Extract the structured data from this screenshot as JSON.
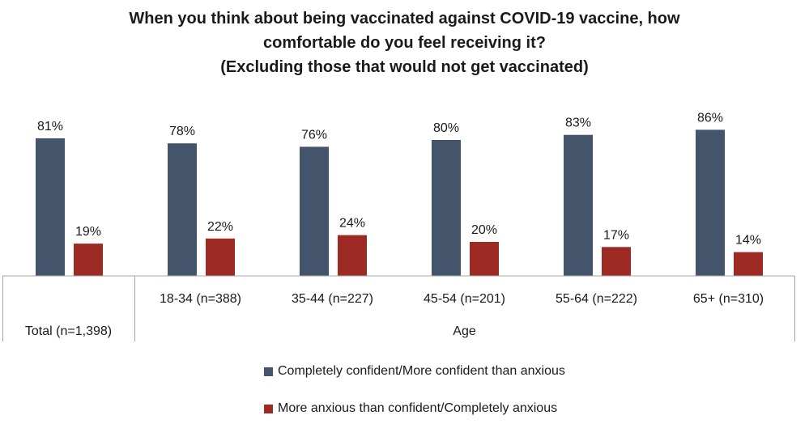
{
  "chart_data": {
    "type": "bar",
    "title_lines": [
      "When you think about being vaccinated against COVID-19 vaccine, how",
      "comfortable do you feel receiving it?",
      "(Excluding those that would not get vaccinated)"
    ],
    "categories": [
      "Total (n=1,398)",
      "18-34 (n=388)",
      "35-44 (n=227)",
      "45-54 (n=201)",
      "55-64 (n=222)",
      "65+ (n=310)"
    ],
    "group_label": "Age",
    "series": [
      {
        "name": "Completely confident/More confident than anxious",
        "color": "#44546a",
        "values": [
          81,
          78,
          76,
          80,
          83,
          86
        ],
        "labels": [
          "81%",
          "78%",
          "76%",
          "80%",
          "83%",
          "86%"
        ]
      },
      {
        "name": "More anxious than confident/Completely anxious",
        "color": "#9e2a24",
        "values": [
          19,
          22,
          24,
          20,
          17,
          14
        ],
        "labels": [
          "19%",
          "22%",
          "24%",
          "20%",
          "17%",
          "14%"
        ]
      }
    ],
    "ylim": [
      0,
      100
    ],
    "grid": false,
    "legend_position": "bottom"
  }
}
